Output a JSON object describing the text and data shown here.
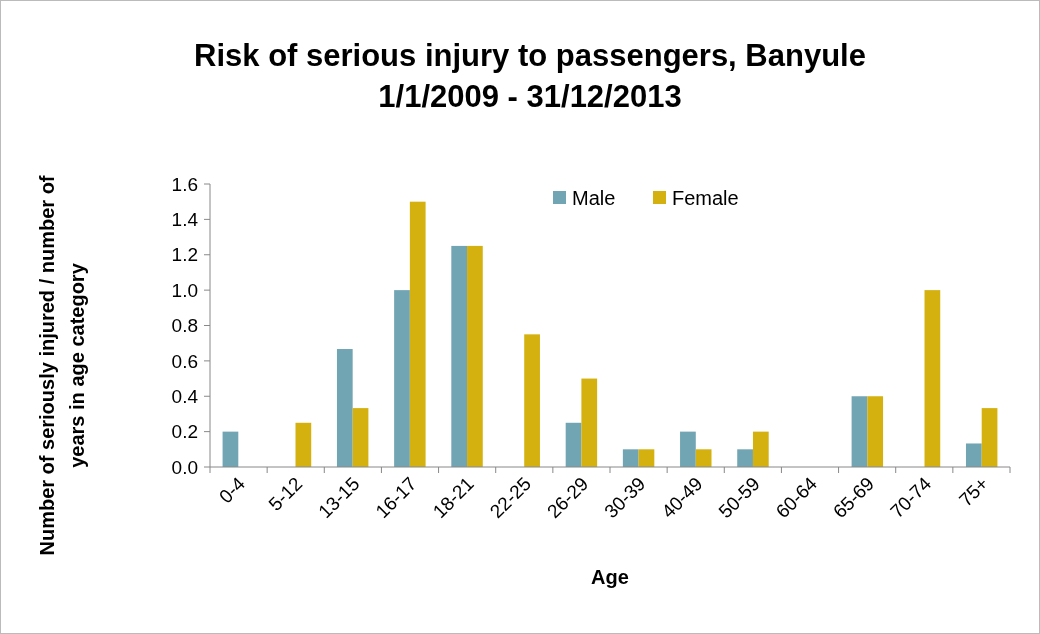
{
  "chart_data": {
    "type": "bar",
    "title": "Risk of serious injury to passengers, Banyule\n1/1/2009 - 31/12/2013",
    "xlabel": "Age",
    "ylabel": "Number of seriously injured / number of\nyears in age category",
    "categories": [
      "0-4",
      "5-12",
      "13-15",
      "16-17",
      "18-21",
      "22-25",
      "26-29",
      "30-39",
      "40-49",
      "50-59",
      "60-64",
      "65-69",
      "70-74",
      "75+"
    ],
    "series": [
      {
        "name": "Male",
        "color": "#71a5b4",
        "values": [
          0.2,
          0,
          0.667,
          1.0,
          1.25,
          0,
          0.25,
          0.1,
          0.2,
          0.1,
          0,
          0.4,
          0,
          0.133
        ]
      },
      {
        "name": "Female",
        "color": "#d4b10e",
        "values": [
          0,
          0.25,
          0.333,
          1.5,
          1.25,
          0.75,
          0.5,
          0.1,
          0.1,
          0.2,
          0,
          0.4,
          1.0,
          0.333
        ]
      }
    ],
    "ylim": [
      0,
      1.6
    ],
    "yticks": [
      {
        "value": 0,
        "label": "0.0"
      },
      {
        "value": 0.2,
        "label": "0.2"
      },
      {
        "value": 0.4,
        "label": "0.4"
      },
      {
        "value": 0.6,
        "label": "0.6"
      },
      {
        "value": 0.8,
        "label": "0.8"
      },
      {
        "value": 1,
        "label": "1.0"
      },
      {
        "value": 1.2,
        "label": "1.2"
      },
      {
        "value": 1.4,
        "label": "1.4"
      },
      {
        "value": 1.6,
        "label": "1.6"
      }
    ],
    "grid": false,
    "legend": "top"
  }
}
